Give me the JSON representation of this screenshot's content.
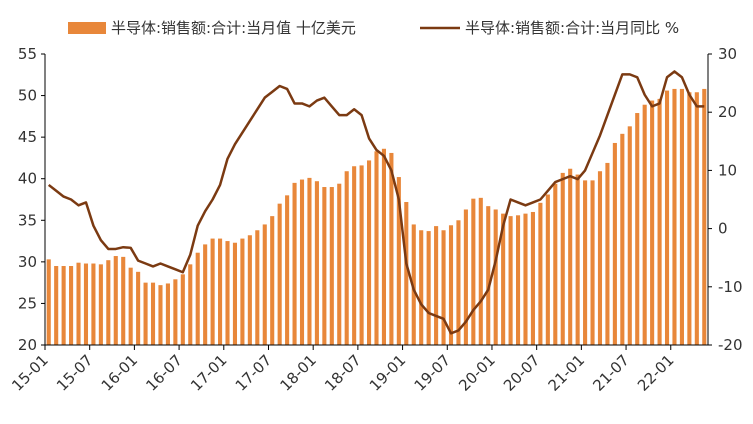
{
  "colors": {
    "bar": "#E8873A",
    "line": "#7B3A12",
    "axis": "#000000",
    "text": "#333333"
  },
  "chart_data": {
    "type": "bar",
    "title": "",
    "xlabel": "",
    "ylabel": "",
    "legend": {
      "placement": "top",
      "entries": [
        "半导体:销售额:合计:当月值 十亿美元",
        "半导体:销售额:合计:当月同比 %"
      ]
    },
    "grid": false,
    "y_left": {
      "ylim": [
        20,
        55
      ],
      "ticks": [
        "20",
        "25",
        "30",
        "35",
        "40",
        "45",
        "50",
        "55"
      ]
    },
    "y_right": {
      "ylim": [
        -20,
        30
      ],
      "ticks": [
        "-20",
        "-10",
        "0",
        "10",
        "20",
        "30"
      ]
    },
    "x_ticks": [
      "15-01",
      "15-07",
      "16-01",
      "16-07",
      "17-01",
      "17-07",
      "18-01",
      "18-07",
      "19-01",
      "19-07",
      "20-01",
      "20-07",
      "21-01",
      "21-07",
      "22-01"
    ],
    "series": [
      {
        "name": "半导体:销售额:合计:当月值 十亿美元",
        "type": "bar",
        "axis": "left",
        "values": [
          30.3,
          29.5,
          29.5,
          29.5,
          29.9,
          29.8,
          29.8,
          29.7,
          30.2,
          30.7,
          30.6,
          29.3,
          28.8,
          27.5,
          27.5,
          27.2,
          27.4,
          27.9,
          28.5,
          29.7,
          31.1,
          32.1,
          32.8,
          32.8,
          32.5,
          32.3,
          32.8,
          33.2,
          33.8,
          34.5,
          35.5,
          37.0,
          38.0,
          39.5,
          39.9,
          40.1,
          39.7,
          39.0,
          39.0,
          39.4,
          40.9,
          41.5,
          41.6,
          42.2,
          43.3,
          43.6,
          43.1,
          40.2,
          37.2,
          34.5,
          33.8,
          33.7,
          34.3,
          33.8,
          34.4,
          35.0,
          36.3,
          37.6,
          37.7,
          36.7,
          36.3,
          35.8,
          35.5,
          35.6,
          35.8,
          36.0,
          37.1,
          38.1,
          39.4,
          40.7,
          41.2,
          40.5,
          39.8,
          39.8,
          40.9,
          41.9,
          44.3,
          45.4,
          46.3,
          47.9,
          48.9,
          49.4,
          49.6,
          50.6,
          50.8,
          50.8,
          50.4,
          50.4,
          50.8
        ]
      },
      {
        "name": "半导体:销售额:合计:当月同比 %",
        "type": "line",
        "axis": "right",
        "values": [
          7.5,
          6.5,
          5.5,
          5.0,
          4.0,
          4.5,
          0.5,
          -2.0,
          -3.5,
          -3.5,
          -3.2,
          -3.3,
          -5.5,
          -6.0,
          -6.5,
          -6.0,
          -6.5,
          -7.0,
          -7.5,
          -4.5,
          0.5,
          3.0,
          5.0,
          7.5,
          12.0,
          14.5,
          16.5,
          18.5,
          20.5,
          22.5,
          23.5,
          24.5,
          24.0,
          21.5,
          21.5,
          21.0,
          22.0,
          22.5,
          21.0,
          19.5,
          19.5,
          20.5,
          19.5,
          15.5,
          13.5,
          12.5,
          10.0,
          5.0,
          -6.0,
          -10.5,
          -13.0,
          -14.5,
          -15.0,
          -15.5,
          -18.0,
          -17.5,
          -16.0,
          -14.0,
          -12.5,
          -10.5,
          -5.5,
          0.5,
          5.0,
          4.5,
          4.0,
          4.5,
          5.0,
          6.5,
          8.0,
          8.5,
          9.0,
          8.5,
          10.0,
          13.0,
          16.0,
          19.5,
          23.0,
          26.5,
          26.5,
          26.0,
          23.0,
          21.0,
          21.5,
          26.0,
          27.0,
          26.0,
          23.0,
          21.0,
          21.0
        ]
      }
    ]
  }
}
